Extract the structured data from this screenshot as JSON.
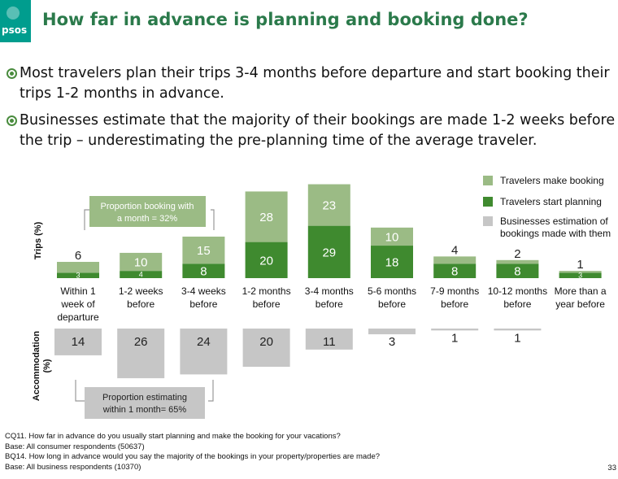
{
  "header": {
    "title": "How far in advance is planning and booking done?",
    "logo_text": "psos"
  },
  "bullets": [
    "Most travelers plan their trips 3-4 months before departure and start booking their trips 1-2 months in advance.",
    "Businesses estimate that the majority of their bookings are made 1-2 weeks before the trip – underestimating the pre-planning time of the average traveler."
  ],
  "chart_data": {
    "type": "bar",
    "categories": [
      [
        "Within 1",
        "week of",
        "departure"
      ],
      [
        "1-2 weeks",
        "before"
      ],
      [
        "3-4 weeks",
        "before"
      ],
      [
        "1-2 months",
        "before"
      ],
      [
        "3-4 months",
        "before"
      ],
      [
        "5-6 months",
        "before"
      ],
      [
        "7-9 months",
        "before"
      ],
      [
        "10-12 months",
        "before"
      ],
      [
        "More than a",
        "year before"
      ]
    ],
    "top_ylabel": "Trips (%)",
    "bottom_ylabel": [
      "Accommodation",
      "(%)"
    ],
    "series": [
      {
        "name": "Travelers make booking",
        "color": "#9bbb85",
        "values": [
          6,
          10,
          15,
          28,
          23,
          10,
          4,
          2,
          1
        ],
        "labels": [
          "6",
          "10",
          "15",
          "28",
          "23",
          "10",
          "4",
          "2",
          "1"
        ]
      },
      {
        "name": "Travelers start planning",
        "color": "#3f8a2f",
        "values": [
          3,
          4,
          8,
          20,
          29,
          18,
          8,
          8,
          3
        ],
        "labels": [
          "3",
          "4",
          "8",
          "20",
          "29",
          "18",
          "8",
          "8",
          "3"
        ]
      },
      {
        "name": "Businesses estimation of bookings made with them",
        "color": "#c6c6c6",
        "values": [
          14,
          26,
          24,
          20,
          11,
          3,
          1,
          1,
          0
        ],
        "labels": [
          "14",
          "26",
          "24",
          "20",
          "11",
          "3",
          "1",
          "1",
          ""
        ]
      }
    ],
    "legend": [
      {
        "label": [
          "Travelers make booking"
        ],
        "color": "#9bbb85"
      },
      {
        "label": [
          "Travelers start planning"
        ],
        "color": "#3f8a2f"
      },
      {
        "label": [
          "Businesses estimation of",
          "bookings made with them"
        ],
        "color": "#c6c6c6"
      }
    ],
    "annotations": {
      "top_box": [
        "Proportion booking with",
        "a month = 32%"
      ],
      "bottom_box": [
        "Proportion estimating",
        "within 1 month= 65%"
      ]
    },
    "legend_position": "top-right"
  },
  "footer": {
    "lines": [
      "CQ11. How far in advance do you usually start planning and make the booking for your vacations?",
      "Base: All consumer respondents (50637)",
      "BQ14. How long in advance would you say the majority of the bookings in your property/properties are made?",
      "Base: All business respondents (10370)"
    ],
    "page_number": "33"
  }
}
